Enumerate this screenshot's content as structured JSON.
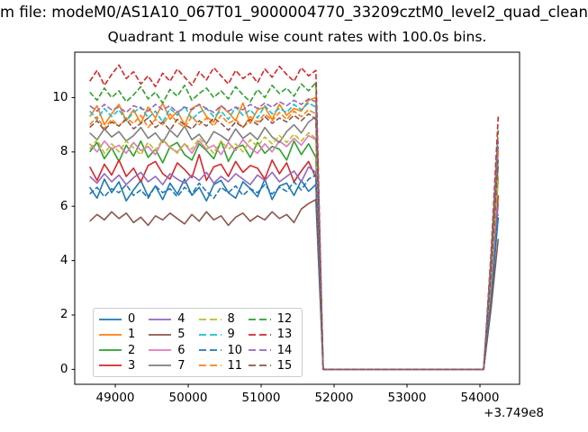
{
  "titles": {
    "file_line": "m file: modeM0/AS1A10_067T01_9000004770_33209cztM0_level2_quad_clean",
    "chart_line": "Quadrant 1 module wise count rates with 100.0s bins."
  },
  "axes": {
    "x_ticks": [
      49000,
      50000,
      51000,
      52000,
      53000,
      54000
    ],
    "x_tick_labels": [
      "49000",
      "50000",
      "51000",
      "52000",
      "53000",
      "54000"
    ],
    "y_ticks": [
      0,
      2,
      4,
      6,
      8,
      10
    ],
    "y_tick_labels": [
      "0",
      "2",
      "4",
      "6",
      "8",
      "10"
    ],
    "x_offset_label": "+3.749e8"
  },
  "chart_data": {
    "type": "line",
    "title": "Quadrant 1 module wise count rates with 100.0s bins.",
    "xlabel": "",
    "ylabel": "",
    "x_axis_offset": "+3.749e8",
    "xlim": [
      48444,
      54543
    ],
    "ylim": [
      -0.55,
      11.67
    ],
    "grid": false,
    "legend_position": "lower left",
    "legend_columns": 4,
    "x_start": 48650,
    "x_step": 100,
    "n_points": 57,
    "series": [
      {
        "name": "0",
        "color": "#1f77b4",
        "linestyle": "solid",
        "y": [
          6.7,
          6.3,
          7.0,
          6.5,
          6.9,
          6.2,
          6.6,
          6.95,
          6.35,
          6.75,
          6.25,
          6.85,
          6.45,
          7.0,
          6.4,
          6.7,
          6.2,
          6.8,
          6.95,
          6.5,
          6.3,
          6.9,
          6.65,
          6.35,
          7.0,
          6.25,
          6.75,
          6.85,
          6.4,
          6.95,
          6.55,
          6.8,
          0,
          0,
          0,
          0,
          0,
          0,
          0,
          0,
          0,
          0,
          0,
          0,
          0,
          0,
          0,
          0,
          0,
          0,
          0,
          0,
          0,
          0,
          0,
          2.5,
          5.6
        ]
      },
      {
        "name": "1",
        "color": "#ff7f0e",
        "linestyle": "solid",
        "y": [
          9.3,
          9.7,
          9.0,
          9.4,
          9.75,
          9.15,
          9.55,
          9.05,
          9.65,
          9.25,
          9.8,
          9.2,
          9.5,
          9.0,
          9.6,
          9.75,
          9.3,
          9.1,
          9.7,
          9.45,
          9.15,
          9.8,
          9.05,
          9.55,
          9.65,
          9.2,
          9.75,
          9.35,
          9.6,
          9.5,
          9.9,
          10.0,
          0,
          0,
          0,
          0,
          0,
          0,
          0,
          0,
          0,
          0,
          0,
          0,
          0,
          0,
          0,
          0,
          0,
          0,
          0,
          0,
          0,
          0,
          0,
          3.7,
          8.2
        ]
      },
      {
        "name": "2",
        "color": "#2ca02c",
        "linestyle": "solid",
        "y": [
          8.0,
          8.35,
          7.75,
          8.15,
          7.65,
          8.25,
          7.85,
          8.4,
          7.8,
          8.1,
          7.6,
          8.2,
          8.35,
          7.9,
          7.7,
          8.3,
          8.05,
          7.75,
          8.4,
          7.65,
          8.15,
          8.25,
          7.8,
          8.35,
          7.95,
          8.2,
          8.1,
          7.7,
          8.4,
          7.9,
          8.3,
          7.8,
          0,
          0,
          0,
          0,
          0,
          0,
          0,
          0,
          0,
          0,
          0,
          0,
          0,
          0,
          0,
          0,
          0,
          0,
          0,
          0,
          0,
          0,
          0,
          3.2,
          7.0
        ]
      },
      {
        "name": "3",
        "color": "#d62728",
        "linestyle": "solid",
        "y": [
          7.45,
          6.95,
          7.55,
          7.15,
          7.7,
          7.1,
          7.4,
          6.9,
          7.5,
          7.65,
          7.2,
          7.0,
          7.6,
          7.35,
          7.05,
          7.9,
          6.95,
          7.45,
          7.55,
          7.1,
          7.65,
          7.25,
          7.5,
          7.4,
          7.0,
          7.7,
          7.2,
          7.6,
          6.9,
          7.3,
          7.65,
          7.05,
          0,
          0,
          0,
          0,
          0,
          0,
          0,
          0,
          0,
          0,
          0,
          0,
          0,
          0,
          0,
          0,
          0,
          0,
          0,
          0,
          0,
          0,
          0,
          2.9,
          6.4
        ]
      },
      {
        "name": "4",
        "color": "#9467bd",
        "linestyle": "solid",
        "y": [
          7.1,
          6.85,
          7.2,
          6.9,
          7.15,
          6.8,
          7.05,
          7.25,
          6.9,
          7.1,
          6.8,
          7.2,
          7.0,
          6.85,
          7.15,
          6.95,
          7.25,
          6.85,
          7.1,
          6.9,
          7.2,
          7.0,
          6.8,
          7.15,
          6.95,
          7.25,
          6.9,
          7.1,
          7.3,
          6.9,
          7.45,
          7.25,
          0,
          0,
          0,
          0,
          0,
          0,
          0,
          0,
          0,
          0,
          0,
          0,
          0,
          0,
          0,
          0,
          0,
          0,
          0,
          0,
          0,
          0,
          0,
          2.8,
          6.1
        ]
      },
      {
        "name": "5",
        "color": "#8c564b",
        "linestyle": "solid",
        "y": [
          5.45,
          5.7,
          5.5,
          5.8,
          5.55,
          5.75,
          5.4,
          5.6,
          5.3,
          5.65,
          5.5,
          5.75,
          5.55,
          5.35,
          5.7,
          5.45,
          5.8,
          5.5,
          5.65,
          5.3,
          5.6,
          5.75,
          5.45,
          5.65,
          5.5,
          5.8,
          5.55,
          5.7,
          5.4,
          5.9,
          6.1,
          6.25,
          0,
          0,
          0,
          0,
          0,
          0,
          0,
          0,
          0,
          0,
          0,
          0,
          0,
          0,
          0,
          0,
          0,
          0,
          0,
          0,
          0,
          0,
          0,
          2.2,
          4.8
        ]
      },
      {
        "name": "6",
        "color": "#e377c2",
        "linestyle": "solid",
        "y": [
          8.3,
          8.0,
          8.4,
          8.1,
          8.25,
          7.95,
          8.35,
          8.05,
          8.2,
          7.9,
          8.45,
          8.15,
          8.0,
          8.3,
          7.95,
          8.4,
          8.1,
          8.25,
          7.9,
          8.35,
          8.05,
          8.45,
          8.15,
          7.95,
          8.3,
          8.0,
          8.4,
          8.2,
          8.5,
          8.25,
          8.6,
          8.45,
          0,
          0,
          0,
          0,
          0,
          0,
          0,
          0,
          0,
          0,
          0,
          0,
          0,
          0,
          0,
          0,
          0,
          0,
          0,
          0,
          0,
          0,
          0,
          3.2,
          7.1
        ]
      },
      {
        "name": "7",
        "color": "#7f7f7f",
        "linestyle": "solid",
        "y": [
          8.7,
          8.45,
          8.85,
          8.55,
          8.75,
          8.4,
          8.6,
          8.9,
          8.5,
          8.7,
          8.35,
          8.8,
          8.55,
          8.95,
          8.45,
          8.65,
          8.3,
          8.75,
          8.6,
          8.4,
          8.85,
          8.5,
          8.7,
          8.45,
          8.9,
          8.55,
          8.35,
          8.75,
          9.0,
          8.7,
          9.1,
          9.3,
          0,
          0,
          0,
          0,
          0,
          0,
          0,
          0,
          0,
          0,
          0,
          0,
          0,
          0,
          0,
          0,
          0,
          0,
          0,
          0,
          0,
          0,
          0,
          3.4,
          7.5
        ]
      },
      {
        "name": "8",
        "color": "#bcbd22",
        "linestyle": "dashed",
        "y": [
          8.1,
          8.45,
          7.95,
          8.3,
          8.0,
          8.4,
          8.15,
          7.9,
          8.35,
          8.05,
          8.45,
          8.2,
          7.95,
          8.3,
          8.1,
          8.5,
          8.25,
          7.95,
          8.4,
          8.1,
          8.3,
          8.0,
          8.45,
          8.2,
          8.55,
          8.3,
          8.6,
          8.35,
          8.65,
          8.4,
          8.7,
          8.5,
          0,
          0,
          0,
          0,
          0,
          0,
          0,
          0,
          0,
          0,
          0,
          0,
          0,
          0,
          0,
          0,
          0,
          0,
          0,
          0,
          0,
          0,
          0,
          3.2,
          7.1
        ]
      },
      {
        "name": "9",
        "color": "#17becf",
        "linestyle": "dashed",
        "y": [
          9.5,
          9.2,
          9.6,
          9.3,
          9.55,
          9.15,
          9.45,
          9.65,
          9.25,
          9.5,
          9.1,
          9.6,
          9.35,
          9.7,
          9.2,
          9.45,
          9.6,
          9.3,
          9.5,
          9.2,
          9.65,
          9.35,
          9.55,
          9.25,
          9.7,
          9.4,
          9.6,
          9.45,
          9.75,
          9.55,
          9.8,
          9.65,
          0,
          0,
          0,
          0,
          0,
          0,
          0,
          0,
          0,
          0,
          0,
          0,
          0,
          0,
          0,
          0,
          0,
          0,
          0,
          0,
          0,
          0,
          0,
          3.7,
          8.2
        ]
      },
      {
        "name": "10",
        "color": "#1f77b4",
        "linestyle": "dashed",
        "y": [
          6.45,
          6.7,
          6.35,
          6.65,
          6.5,
          6.8,
          6.4,
          6.6,
          6.3,
          6.75,
          6.5,
          6.65,
          6.35,
          6.7,
          6.45,
          6.85,
          6.55,
          6.3,
          6.7,
          6.5,
          6.75,
          6.4,
          6.65,
          6.5,
          6.8,
          6.45,
          6.7,
          6.55,
          6.9,
          6.6,
          7.0,
          7.15,
          0,
          0,
          0,
          0,
          0,
          0,
          0,
          0,
          0,
          0,
          0,
          0,
          0,
          0,
          0,
          0,
          0,
          0,
          0,
          0,
          0,
          0,
          0,
          2.5,
          5.7
        ]
      },
      {
        "name": "11",
        "color": "#ff7f0e",
        "linestyle": "dashed",
        "y": [
          9.0,
          9.3,
          8.85,
          9.2,
          8.95,
          9.25,
          9.05,
          9.35,
          8.9,
          9.2,
          9.0,
          9.4,
          9.1,
          8.9,
          9.3,
          9.0,
          9.25,
          8.95,
          9.35,
          9.05,
          9.2,
          8.9,
          9.3,
          9.1,
          9.4,
          9.15,
          9.45,
          9.2,
          9.5,
          9.3,
          9.55,
          9.4,
          0,
          0,
          0,
          0,
          0,
          0,
          0,
          0,
          0,
          0,
          0,
          0,
          0,
          0,
          0,
          0,
          0,
          0,
          0,
          0,
          0,
          0,
          0,
          3.6,
          8.0
        ]
      },
      {
        "name": "12",
        "color": "#2ca02c",
        "linestyle": "dashed",
        "y": [
          10.2,
          9.9,
          10.35,
          10.0,
          10.25,
          9.85,
          10.1,
          10.4,
          9.95,
          10.2,
          9.8,
          10.3,
          10.05,
          10.45,
          9.9,
          10.15,
          10.35,
          10.0,
          10.25,
          9.95,
          10.4,
          10.1,
          9.85,
          10.3,
          10.0,
          10.45,
          10.15,
          10.35,
          10.05,
          10.5,
          10.25,
          10.55,
          0,
          0,
          0,
          0,
          0,
          0,
          0,
          0,
          0,
          0,
          0,
          0,
          0,
          0,
          0,
          0,
          0,
          0,
          0,
          0,
          0,
          0,
          0,
          4.0,
          8.8
        ]
      },
      {
        "name": "13",
        "color": "#d62728",
        "linestyle": "dashed",
        "y": [
          10.6,
          11.0,
          10.45,
          10.85,
          11.2,
          10.7,
          10.95,
          10.5,
          10.8,
          10.4,
          10.9,
          10.6,
          11.05,
          10.75,
          10.45,
          10.95,
          10.65,
          11.1,
          10.8,
          10.5,
          11.0,
          10.7,
          10.9,
          10.55,
          11.05,
          10.75,
          11.15,
          10.85,
          10.6,
          11.1,
          10.8,
          11.0,
          0,
          0,
          0,
          0,
          0,
          0,
          0,
          0,
          0,
          0,
          0,
          0,
          0,
          0,
          0,
          0,
          0,
          0,
          0,
          0,
          0,
          0,
          0,
          4.2,
          9.3
        ]
      },
      {
        "name": "14",
        "color": "#9467bd",
        "linestyle": "dashed",
        "y": [
          9.7,
          9.5,
          9.75,
          9.55,
          9.65,
          9.45,
          9.7,
          9.6,
          9.5,
          9.75,
          9.55,
          9.7,
          9.45,
          9.65,
          9.55,
          9.75,
          9.6,
          9.45,
          9.7,
          9.5,
          9.65,
          9.55,
          9.75,
          9.6,
          9.8,
          9.65,
          9.85,
          9.7,
          9.9,
          9.75,
          9.95,
          9.85,
          0,
          0,
          0,
          0,
          0,
          0,
          0,
          0,
          0,
          0,
          0,
          0,
          0,
          0,
          0,
          0,
          0,
          0,
          0,
          0,
          0,
          0,
          0,
          3.8,
          8.4
        ]
      },
      {
        "name": "15",
        "color": "#8c564b",
        "linestyle": "dashed",
        "y": [
          8.9,
          9.15,
          8.8,
          9.1,
          8.95,
          9.2,
          8.85,
          9.05,
          9.25,
          8.9,
          9.1,
          8.8,
          9.2,
          9.0,
          8.85,
          9.15,
          8.95,
          9.25,
          9.05,
          8.8,
          9.1,
          8.9,
          9.2,
          9.0,
          9.3,
          9.05,
          9.25,
          9.1,
          9.35,
          9.15,
          9.4,
          9.2,
          0,
          0,
          0,
          0,
          0,
          0,
          0,
          0,
          0,
          0,
          0,
          0,
          0,
          0,
          0,
          0,
          0,
          0,
          0,
          0,
          0,
          0,
          0,
          3.5,
          7.8
        ]
      }
    ]
  }
}
